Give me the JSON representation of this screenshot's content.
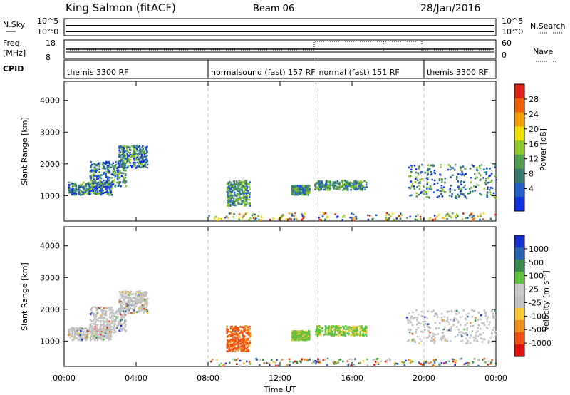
{
  "header": {
    "station": "King Salmon (fitACF)",
    "beam": "Beam 06",
    "date": "28/Jan/2016"
  },
  "panels": {
    "nsky_label": "N.Sky",
    "nsky_ticks": [
      "10^5",
      "10^0"
    ],
    "nsearch_label": "N.Search",
    "nsearch_ticks": [
      "10^5",
      "10^0"
    ],
    "freq_label": "Freq.",
    "freq_unit": "[MHz]",
    "freq_ticks": [
      "18",
      "8"
    ],
    "nave_label": "Nave",
    "nave_ticks": [
      "60",
      "0"
    ],
    "cpid_label": "CPID",
    "cpid_segments": [
      {
        "label": "themis 3300 RF",
        "start": 0,
        "end": 8
      },
      {
        "label": "normalsound (fast) 157 RF",
        "start": 8,
        "end": 14
      },
      {
        "label": "normal (fast) 151 RF",
        "start": 14,
        "end": 20
      },
      {
        "label": "themis 3300 RF",
        "start": 20,
        "end": 24
      }
    ]
  },
  "colors": {
    "power": [
      "#1030e0",
      "#2060c8",
      "#3a7a70",
      "#50a050",
      "#90c828",
      "#f0e000",
      "#f0a000",
      "#f06000",
      "#e02010"
    ],
    "velocity": [
      "#e01010",
      "#f05010",
      "#f09018",
      "#f8c830",
      "#c0c0c0",
      "#c8c8c8",
      "#60c040",
      "#3a8a50",
      "#2a60b0",
      "#1830d0"
    ]
  },
  "chart_data": [
    {
      "type": "heatmap",
      "title": "",
      "xlabel": "Time UT",
      "ylabel": "Slant Range [km]",
      "xlim": [
        0,
        24
      ],
      "ylim": [
        200,
        4600
      ],
      "xticks": [
        "00:00",
        "04:00",
        "08:00",
        "12:00",
        "16:00",
        "20:00",
        "00:00"
      ],
      "yticks": [
        "1000",
        "2000",
        "3000",
        "4000"
      ],
      "colorbar": {
        "label": "Power [dB]",
        "ticks": [
          "28",
          "24",
          "20",
          "16",
          "12",
          "8",
          "4"
        ],
        "range": [
          0,
          30
        ]
      },
      "scatter_regions": [
        {
          "t0": 0.2,
          "t1": 2.6,
          "r0": 1050,
          "r1": 1450,
          "level": "low"
        },
        {
          "t0": 1.4,
          "t1": 3.4,
          "r0": 1300,
          "r1": 2100,
          "level": "low"
        },
        {
          "t0": 3.0,
          "t1": 4.6,
          "r0": 1900,
          "r1": 2600,
          "level": "low"
        },
        {
          "t0": 9.0,
          "t1": 10.3,
          "r0": 700,
          "r1": 1500,
          "level": "mid"
        },
        {
          "t0": 12.6,
          "t1": 13.6,
          "r0": 1050,
          "r1": 1350,
          "level": "mid"
        },
        {
          "t0": 13.9,
          "t1": 16.8,
          "r0": 1200,
          "r1": 1500,
          "level": "mid"
        },
        {
          "t0": 19.0,
          "t1": 24.0,
          "r0": 950,
          "r1": 2000,
          "level": "low"
        },
        {
          "t0": 8.0,
          "t1": 24.0,
          "r0": 250,
          "r1": 480,
          "level": "ground"
        }
      ]
    },
    {
      "type": "heatmap",
      "title": "",
      "xlabel": "Time UT",
      "ylabel": "Slant Range [km]",
      "xlim": [
        0,
        24
      ],
      "ylim": [
        200,
        4600
      ],
      "xticks": [
        "00:00",
        "04:00",
        "08:00",
        "12:00",
        "16:00",
        "20:00",
        "00:00"
      ],
      "yticks": [
        "1000",
        "2000",
        "3000",
        "4000"
      ],
      "colorbar": {
        "label": "Velocity [m s⁻¹]",
        "ticks": [
          "1000",
          "500",
          "100",
          "25",
          "-25",
          "-100",
          "-500",
          "-1000"
        ]
      },
      "scatter_regions": [
        {
          "t0": 0.2,
          "t1": 2.6,
          "r0": 1050,
          "r1": 1450,
          "level": "grey"
        },
        {
          "t0": 1.4,
          "t1": 3.4,
          "r0": 1300,
          "r1": 2100,
          "level": "grey"
        },
        {
          "t0": 3.0,
          "t1": 4.6,
          "r0": 1900,
          "r1": 2600,
          "level": "grey"
        },
        {
          "t0": 9.0,
          "t1": 10.3,
          "r0": 700,
          "r1": 1500,
          "level": "orange"
        },
        {
          "t0": 12.6,
          "t1": 13.6,
          "r0": 1050,
          "r1": 1350,
          "level": "green"
        },
        {
          "t0": 13.9,
          "t1": 16.8,
          "r0": 1200,
          "r1": 1500,
          "level": "green"
        },
        {
          "t0": 19.0,
          "t1": 24.0,
          "r0": 950,
          "r1": 2000,
          "level": "grey"
        },
        {
          "t0": 8.0,
          "t1": 24.0,
          "r0": 250,
          "r1": 480,
          "level": "ground"
        }
      ]
    }
  ]
}
